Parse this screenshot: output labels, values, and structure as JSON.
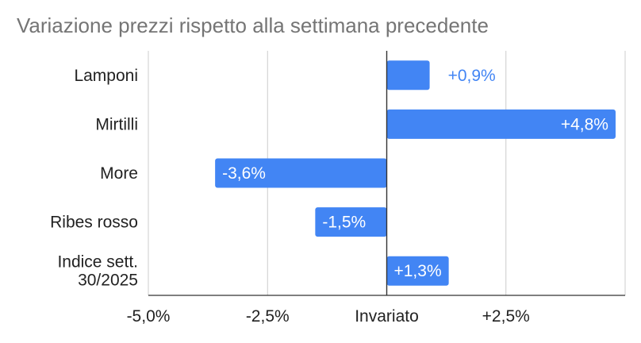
{
  "chart_data": {
    "type": "bar",
    "orientation": "horizontal",
    "title": "Variazione prezzi rispetto alla settimana precedente",
    "categories": [
      "Lamponi",
      "Mirtilli",
      "More",
      "Ribes rosso",
      "Indice sett. 30/2025"
    ],
    "values": [
      0.9,
      4.8,
      -3.6,
      -1.5,
      1.3
    ],
    "data_labels": [
      "+0,9%",
      "+4,8%",
      "-3,6%",
      "-1,5%",
      "+1,3%"
    ],
    "xlim": [
      -5.0,
      5.0
    ],
    "x_ticks": [
      {
        "value": -5.0,
        "label": "-5,0%"
      },
      {
        "value": -2.5,
        "label": "-2,5%"
      },
      {
        "value": 0,
        "label": "Invariato"
      },
      {
        "value": 2.5,
        "label": "+2,5%"
      }
    ],
    "grid": true,
    "legend": "none",
    "colors": {
      "bar": "#4285f4",
      "grid": "#cccccc",
      "axis": "#333333",
      "label_outside": "#4285f4",
      "label_inside": "#ffffff"
    }
  }
}
